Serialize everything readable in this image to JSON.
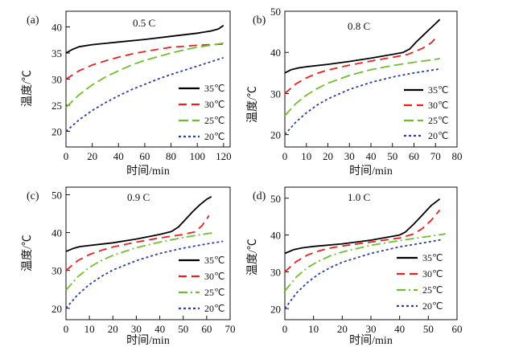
{
  "colors": {
    "35": "#000000",
    "30": "#e8201e",
    "25": "#6fbf2d",
    "20": "#2b3fa6"
  },
  "chart_data": [
    {
      "type": "line",
      "panel_label": "(a)",
      "condition": "0.5 C",
      "xlabel": "时间/min",
      "ylabel": "温度/℃",
      "xlim": [
        0,
        125
      ],
      "ylim": [
        17,
        43
      ],
      "xticks": [
        0,
        20,
        40,
        60,
        80,
        100,
        120
      ],
      "yticks": [
        20,
        25,
        30,
        35,
        40
      ],
      "series": [
        {
          "name": "35℃",
          "style": "solid",
          "x": [
            0,
            5,
            10,
            20,
            40,
            60,
            80,
            100,
            110,
            116,
            120
          ],
          "y": [
            35.0,
            35.7,
            36.2,
            36.6,
            37.1,
            37.6,
            38.2,
            38.8,
            39.2,
            39.6,
            40.3
          ]
        },
        {
          "name": "30℃",
          "style": "dash",
          "x": [
            0,
            10,
            20,
            30,
            40,
            50,
            60,
            70,
            80,
            90,
            100,
            110,
            120
          ],
          "y": [
            30.0,
            31.6,
            32.7,
            33.5,
            34.2,
            34.8,
            35.3,
            35.7,
            36.1,
            36.3,
            36.5,
            36.6,
            36.7
          ]
        },
        {
          "name": "25℃",
          "style": "longdash",
          "x": [
            0,
            10,
            20,
            30,
            40,
            50,
            60,
            70,
            80,
            90,
            100,
            110,
            120
          ],
          "y": [
            24.6,
            27.0,
            28.9,
            30.4,
            31.6,
            32.7,
            33.6,
            34.3,
            35.0,
            35.6,
            36.1,
            36.5,
            36.9
          ]
        },
        {
          "name": "20℃",
          "style": "dot",
          "x": [
            0,
            10,
            20,
            30,
            40,
            50,
            60,
            70,
            80,
            90,
            100,
            110,
            120
          ],
          "y": [
            20.0,
            22.2,
            24.0,
            25.5,
            26.8,
            28.0,
            29.0,
            30.0,
            30.9,
            31.7,
            32.5,
            33.3,
            34.1
          ]
        }
      ]
    },
    {
      "type": "line",
      "panel_label": "(b)",
      "condition": "0.8 C",
      "xlabel": "时间/min",
      "ylabel": "温度/℃",
      "xlim": [
        0,
        80
      ],
      "ylim": [
        17,
        50
      ],
      "xticks": [
        0,
        10,
        20,
        30,
        40,
        50,
        60,
        70,
        80
      ],
      "yticks": [
        20,
        30,
        40,
        50
      ],
      "series": [
        {
          "name": "35℃",
          "style": "solid",
          "x": [
            0,
            3,
            6,
            10,
            20,
            30,
            40,
            50,
            55,
            58,
            61,
            64,
            67,
            70,
            72
          ],
          "y": [
            35.0,
            35.8,
            36.2,
            36.5,
            37.1,
            37.8,
            38.6,
            39.5,
            40.0,
            40.8,
            42.5,
            44.0,
            45.5,
            47.0,
            48.0
          ]
        },
        {
          "name": "30℃",
          "style": "dash",
          "x": [
            0,
            5,
            10,
            15,
            20,
            30,
            40,
            50,
            57,
            60,
            64,
            68,
            71
          ],
          "y": [
            30.0,
            32.3,
            33.8,
            34.9,
            35.7,
            36.9,
            37.9,
            38.8,
            39.5,
            40.1,
            41.0,
            42.3,
            44.0
          ]
        },
        {
          "name": "25℃",
          "style": "longdash",
          "x": [
            0,
            5,
            10,
            15,
            20,
            30,
            40,
            50,
            60,
            70,
            72
          ],
          "y": [
            24.6,
            27.5,
            29.6,
            31.2,
            32.5,
            34.4,
            35.8,
            36.8,
            37.6,
            38.3,
            38.5
          ]
        },
        {
          "name": "20℃",
          "style": "dot",
          "x": [
            0,
            5,
            10,
            15,
            20,
            30,
            40,
            50,
            60,
            70,
            72
          ],
          "y": [
            20.0,
            23.0,
            25.3,
            27.2,
            28.7,
            31.0,
            32.7,
            34.0,
            35.0,
            35.8,
            36.0
          ]
        }
      ]
    },
    {
      "type": "line",
      "panel_label": "(c)",
      "condition": "0.9 C",
      "xlabel": "时间/min",
      "ylabel": "温度/℃",
      "xlim": [
        0,
        70
      ],
      "ylim": [
        17,
        52
      ],
      "xticks": [
        0,
        10,
        20,
        30,
        40,
        50,
        60,
        70
      ],
      "yticks": [
        20,
        30,
        40,
        50
      ],
      "series": [
        {
          "name": "35℃",
          "style": "solid",
          "x": [
            0,
            3,
            6,
            10,
            20,
            30,
            40,
            45,
            48,
            51,
            54,
            57,
            60,
            62
          ],
          "y": [
            35.0,
            35.8,
            36.3,
            36.6,
            37.3,
            38.3,
            39.5,
            40.3,
            41.5,
            43.5,
            45.5,
            47.3,
            48.8,
            49.5
          ]
        },
        {
          "name": "30℃",
          "style": "dash",
          "x": [
            0,
            5,
            10,
            15,
            20,
            30,
            40,
            50,
            55,
            58,
            61
          ],
          "y": [
            30.0,
            32.6,
            34.2,
            35.3,
            36.2,
            37.5,
            38.6,
            39.5,
            40.2,
            41.8,
            44.5
          ]
        },
        {
          "name": "25℃",
          "style": "dashdot",
          "x": [
            0,
            5,
            10,
            15,
            20,
            30,
            40,
            50,
            60,
            63
          ],
          "y": [
            24.8,
            28.3,
            30.8,
            32.6,
            34.0,
            36.0,
            37.5,
            38.7,
            39.7,
            40.0
          ]
        },
        {
          "name": "20℃",
          "style": "dot",
          "x": [
            0,
            5,
            10,
            15,
            20,
            30,
            40,
            50,
            60,
            65,
            67
          ],
          "y": [
            20.0,
            23.6,
            26.3,
            28.4,
            30.1,
            32.6,
            34.5,
            35.9,
            37.0,
            37.5,
            37.7
          ]
        }
      ]
    },
    {
      "type": "line",
      "panel_label": "(d)",
      "condition": "1.0 C",
      "xlabel": "时间/min",
      "ylabel": "温度/℃",
      "xlim": [
        0,
        60
      ],
      "ylim": [
        17,
        53
      ],
      "xticks": [
        0,
        10,
        20,
        30,
        40,
        50,
        60
      ],
      "yticks": [
        20,
        30,
        40,
        50
      ],
      "series": [
        {
          "name": "35℃",
          "style": "solid",
          "x": [
            0,
            3,
            6,
            10,
            20,
            30,
            40,
            42,
            45,
            48,
            51,
            54
          ],
          "y": [
            35.0,
            36.0,
            36.5,
            36.9,
            37.6,
            38.6,
            40.0,
            40.8,
            43.0,
            45.5,
            48.0,
            49.8
          ]
        },
        {
          "name": "30℃",
          "style": "dash",
          "x": [
            0,
            4,
            8,
            12,
            16,
            20,
            30,
            40,
            45,
            48,
            51,
            54
          ],
          "y": [
            30.0,
            32.8,
            34.6,
            35.7,
            36.5,
            37.0,
            38.1,
            39.2,
            40.3,
            41.8,
            44.0,
            46.8
          ]
        },
        {
          "name": "25℃",
          "style": "dashdot",
          "x": [
            0,
            4,
            8,
            12,
            16,
            20,
            30,
            40,
            50,
            56
          ],
          "y": [
            24.8,
            28.6,
            31.2,
            33.0,
            34.4,
            35.4,
            37.2,
            38.5,
            39.6,
            40.3
          ]
        },
        {
          "name": "20℃",
          "style": "dot",
          "x": [
            0,
            4,
            8,
            12,
            16,
            20,
            30,
            40,
            50,
            55
          ],
          "y": [
            20.0,
            24.2,
            27.2,
            29.5,
            31.2,
            32.6,
            35.0,
            36.8,
            38.1,
            38.8
          ]
        }
      ]
    }
  ]
}
